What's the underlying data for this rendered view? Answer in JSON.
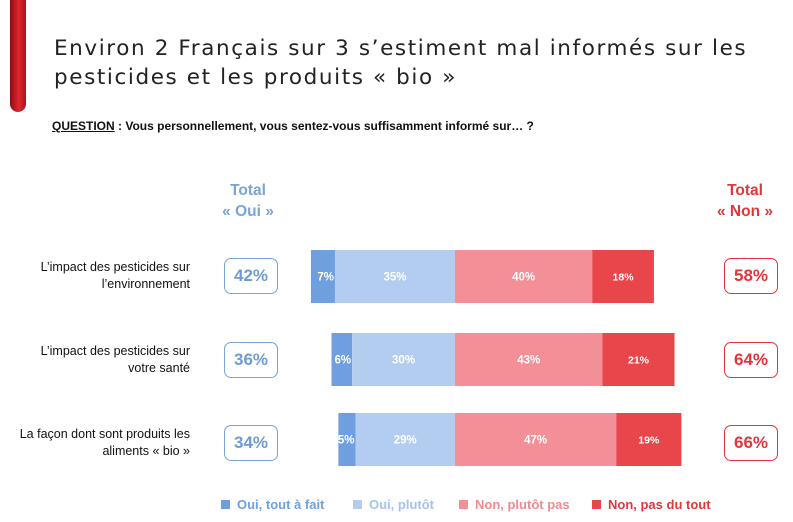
{
  "page": {
    "title": "Environ 2 Français sur 3 s’estiment mal informés sur les pesticides et les produits « bio »",
    "question_label": "QUESTION",
    "question_text": " : Vous personnellement, vous sentez-vous suffisamment informé sur… ?"
  },
  "totals": {
    "oui_heading_line1": "Total",
    "oui_heading_line2": "« Oui »",
    "non_heading_line1": "Total",
    "non_heading_line2": "« Non »"
  },
  "colors": {
    "oui_tout_a_fait": "#6f9fde",
    "oui_plutot": "#b3cdf0",
    "non_plutot_pas": "#f39097",
    "non_pas_du_tout": "#e9464c",
    "oui_accent": "#7aa3d8",
    "non_accent": "#e2353c"
  },
  "chart_data": {
    "type": "bar",
    "orientation": "horizontal-stacked-diverging",
    "categories": [
      "L’impact des pesticides sur l’environnement",
      "L’impact des pesticides sur votre santé",
      "La façon dont sont produits les aliments « bio »"
    ],
    "category_lines": [
      [
        "L’impact des pesticides sur",
        "l’environnement"
      ],
      [
        "L’impact des pesticides sur",
        "votre santé"
      ],
      [
        "La façon dont sont produits les",
        "aliments « bio »"
      ]
    ],
    "series": [
      {
        "name": "Oui, tout à fait",
        "values": [
          7,
          6,
          5
        ],
        "labels": [
          "7%",
          "6%",
          "5%"
        ]
      },
      {
        "name": "Oui, plutôt",
        "values": [
          35,
          30,
          29
        ],
        "labels": [
          "35%",
          "30%",
          "29%"
        ]
      },
      {
        "name": "Non, plutôt pas",
        "values": [
          40,
          43,
          47
        ],
        "labels": [
          "40%",
          "43%",
          "47%"
        ]
      },
      {
        "name": "Non, pas du tout",
        "values": [
          18,
          21,
          19
        ],
        "labels": [
          "18%",
          "21%",
          "19%"
        ]
      }
    ],
    "total_oui": [
      "42%",
      "36%",
      "34%"
    ],
    "total_non": [
      "58%",
      "64%",
      "66%"
    ],
    "legend_position": "bottom",
    "unit": "%"
  }
}
